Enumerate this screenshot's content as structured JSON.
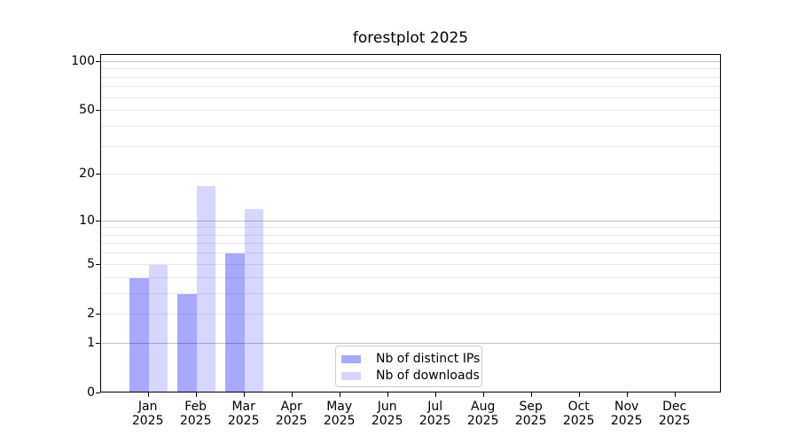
{
  "chart_data": {
    "type": "bar",
    "title": "forestplot 2025",
    "categories": [
      "Jan",
      "Feb",
      "Mar",
      "Apr",
      "May",
      "Jun",
      "Jul",
      "Aug",
      "Sep",
      "Oct",
      "Nov",
      "Dec"
    ],
    "year": "2025",
    "series": [
      {
        "name": "Nb of distinct IPs",
        "values": [
          4,
          3,
          6,
          0,
          0,
          0,
          0,
          0,
          0,
          0,
          0,
          0
        ],
        "color_hex": "#0000ff",
        "opacity": 0.34
      },
      {
        "name": "Nb of downloads",
        "values": [
          5,
          17,
          12,
          0,
          0,
          0,
          0,
          0,
          0,
          0,
          0,
          0
        ],
        "color_hex": "#0000ff",
        "opacity": 0.16
      }
    ],
    "yticks": [
      0,
      1,
      2,
      5,
      10,
      20,
      50,
      100
    ],
    "scale": "log10(1+y)",
    "ylim": [
      0,
      110
    ],
    "grid": {
      "major": [
        1,
        10,
        100
      ],
      "minor": [
        2,
        3,
        4,
        5,
        6,
        7,
        8,
        9,
        20,
        30,
        40,
        50,
        60,
        70,
        80,
        90
      ]
    },
    "legend_position": "lower center",
    "colors": {
      "axis": "#000000",
      "grid_major": "#c0c0c0",
      "grid_minor": "#e8e8e8",
      "legend_border": "#cccccc",
      "background": "#ffffff"
    }
  }
}
